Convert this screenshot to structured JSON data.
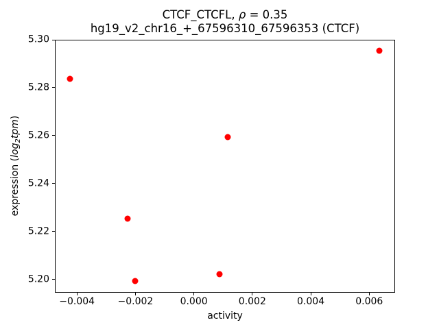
{
  "chart_data": {
    "type": "scatter",
    "title": "CTCF_CTCFL, ρ = 0.35",
    "title_parts": {
      "prefix": "CTCF_CTCFL, ",
      "rho": "ρ",
      "suffix": " = 0.35"
    },
    "subtitle": "hg19_v2_chr16_+_67596310_67596353 (CTCF)",
    "xlabel": "activity",
    "ylabel": "expression (log2tpm)",
    "ylabel_parts": {
      "prefix": "expression (",
      "log": "log",
      "sub": "2",
      "tail": "tpm",
      "suffix": ")"
    },
    "correlation_rho": 0.35,
    "marker_color": "#ff0000",
    "marker_size_px": 9,
    "grid": false,
    "legend": null,
    "xlim": [
      -0.004755,
      0.006885
    ],
    "ylim": [
      5.1945,
      5.3
    ],
    "x_ticks": {
      "values": [
        -0.004,
        -0.002,
        0.0,
        0.002,
        0.004,
        0.006
      ],
      "labels": [
        "−0.004",
        "−0.002",
        "0.000",
        "0.002",
        "0.004",
        "0.006"
      ]
    },
    "y_ticks": {
      "values": [
        5.2,
        5.22,
        5.24,
        5.26,
        5.28,
        5.3
      ],
      "labels": [
        "5.20",
        "5.22",
        "5.24",
        "5.26",
        "5.28",
        "5.30"
      ]
    },
    "points": [
      {
        "x": -0.00425,
        "y": 5.2838
      },
      {
        "x": -0.00226,
        "y": 5.2254
      },
      {
        "x": -0.00202,
        "y": 5.1994
      },
      {
        "x": 0.00087,
        "y": 5.2022
      },
      {
        "x": 0.00117,
        "y": 5.2593
      },
      {
        "x": 0.00635,
        "y": 5.2953
      }
    ]
  }
}
